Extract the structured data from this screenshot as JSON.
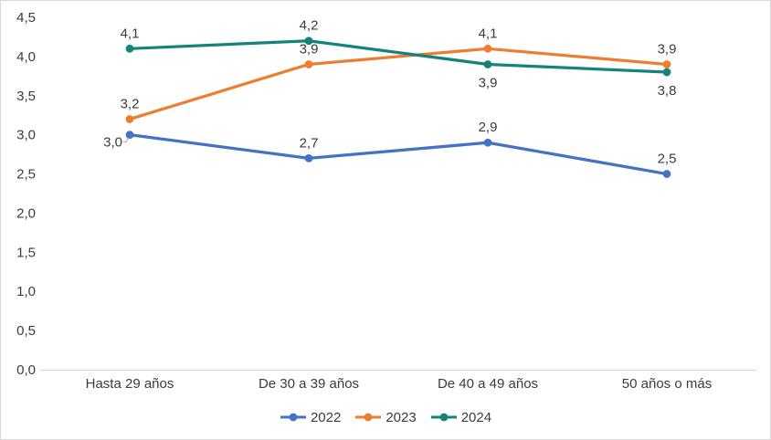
{
  "chart_data": {
    "type": "line",
    "title": "",
    "categories": [
      "Hasta 29 años",
      "De 30 a 39 años",
      "De 40 a 49 años",
      "50 años o más"
    ],
    "series": [
      {
        "name": "2022",
        "color": "#4472C4",
        "values": [
          3.0,
          2.7,
          2.9,
          2.5
        ],
        "point_labels": [
          "3,0",
          "2,7",
          "2,9",
          "2,5"
        ],
        "label_positions": [
          "left-leader",
          "above",
          "above",
          "above"
        ]
      },
      {
        "name": "2023",
        "color": "#ED7D31",
        "values": [
          3.2,
          3.9,
          4.1,
          3.9
        ],
        "point_labels": [
          "3,2",
          "3,9",
          "4,1",
          "3,9"
        ],
        "label_positions": [
          "above",
          "above",
          "above",
          "above"
        ]
      },
      {
        "name": "2024",
        "color": "#15837C",
        "values": [
          4.1,
          4.2,
          3.9,
          3.8
        ],
        "point_labels": [
          "4,1",
          "4,2",
          "3,9",
          "3,8"
        ],
        "label_positions": [
          "above",
          "above",
          "below",
          "below"
        ]
      }
    ],
    "y_axis": {
      "min": 0,
      "max": 4.5,
      "step": 0.5,
      "tick_labels": [
        "0,0",
        "0,5",
        "1,0",
        "1,5",
        "2,0",
        "2,5",
        "3,0",
        "3,5",
        "4,0",
        "4,5"
      ]
    },
    "x_axis": {
      "line_color": "#d2d2d2"
    },
    "legend": {
      "position": "bottom",
      "entries": [
        "2022",
        "2023",
        "2024"
      ]
    },
    "grid": false,
    "text_color": "#3b3b3b",
    "leader_line_color": "#a6a6a6"
  }
}
